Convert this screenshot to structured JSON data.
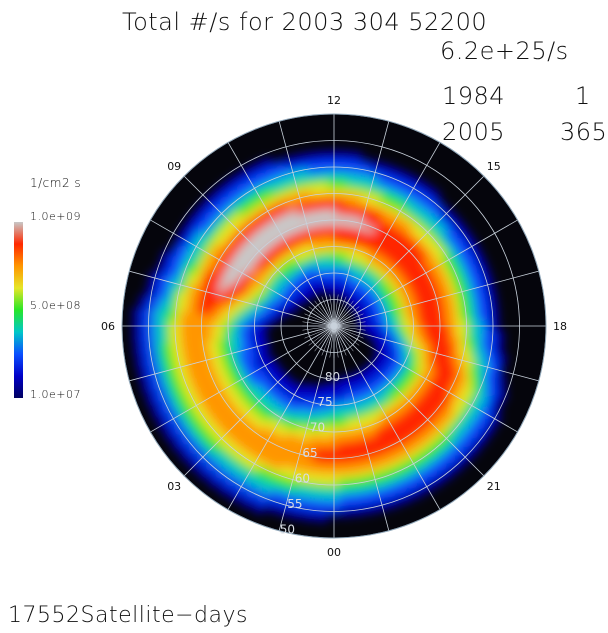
{
  "header": {
    "title": "Total #/s for 2003 304 52200",
    "total_rate": "6.2e+25/s",
    "start_year": "1984",
    "start_day": "1",
    "end_year": "2005",
    "end_day": "365"
  },
  "colorbar": {
    "unit": "1/cm2 s",
    "max_label": "1.0e+09",
    "mid_label": "5.0e+08",
    "min_label": "1.0e+07",
    "colors": [
      "#000060",
      "#0000c8",
      "#0a50ff",
      "#00c8c8",
      "#28e628",
      "#e6e628",
      "#ff9600",
      "#ff2800",
      "#c8c8c8"
    ]
  },
  "footer": {
    "count": "17552",
    "label": "Satellite−days"
  },
  "chart_data": {
    "type": "heatmap",
    "projection": "polar (magnetic local time vs magnetic latitude)",
    "title": "Total #/s for 2003 304 52200",
    "mlt_labels": [
      "12",
      "15",
      "18",
      "21",
      "00",
      "03",
      "06",
      "09"
    ],
    "mlat_labels": [
      "80",
      "75",
      "70",
      "65",
      "60",
      "55",
      "50"
    ],
    "mlat_range": [
      50,
      90
    ],
    "color_scale": {
      "min": 10000000.0,
      "mid": 500000000.0,
      "max": 1000000000.0,
      "unit": "1/cm2 s"
    },
    "grid": true,
    "oval_features": [
      {
        "mlt": 10.5,
        "mlat": 69,
        "flux": 1000000000.0
      },
      {
        "mlt": 12.5,
        "mlat": 71,
        "flux": 850000000.0
      },
      {
        "mlt": 15.0,
        "mlat": 72,
        "flux": 600000000.0
      },
      {
        "mlt": 23.0,
        "mlat": 67,
        "flux": 550000000.0
      },
      {
        "mlt": 3.0,
        "mlat": 64,
        "flux": 300000000.0
      }
    ]
  }
}
